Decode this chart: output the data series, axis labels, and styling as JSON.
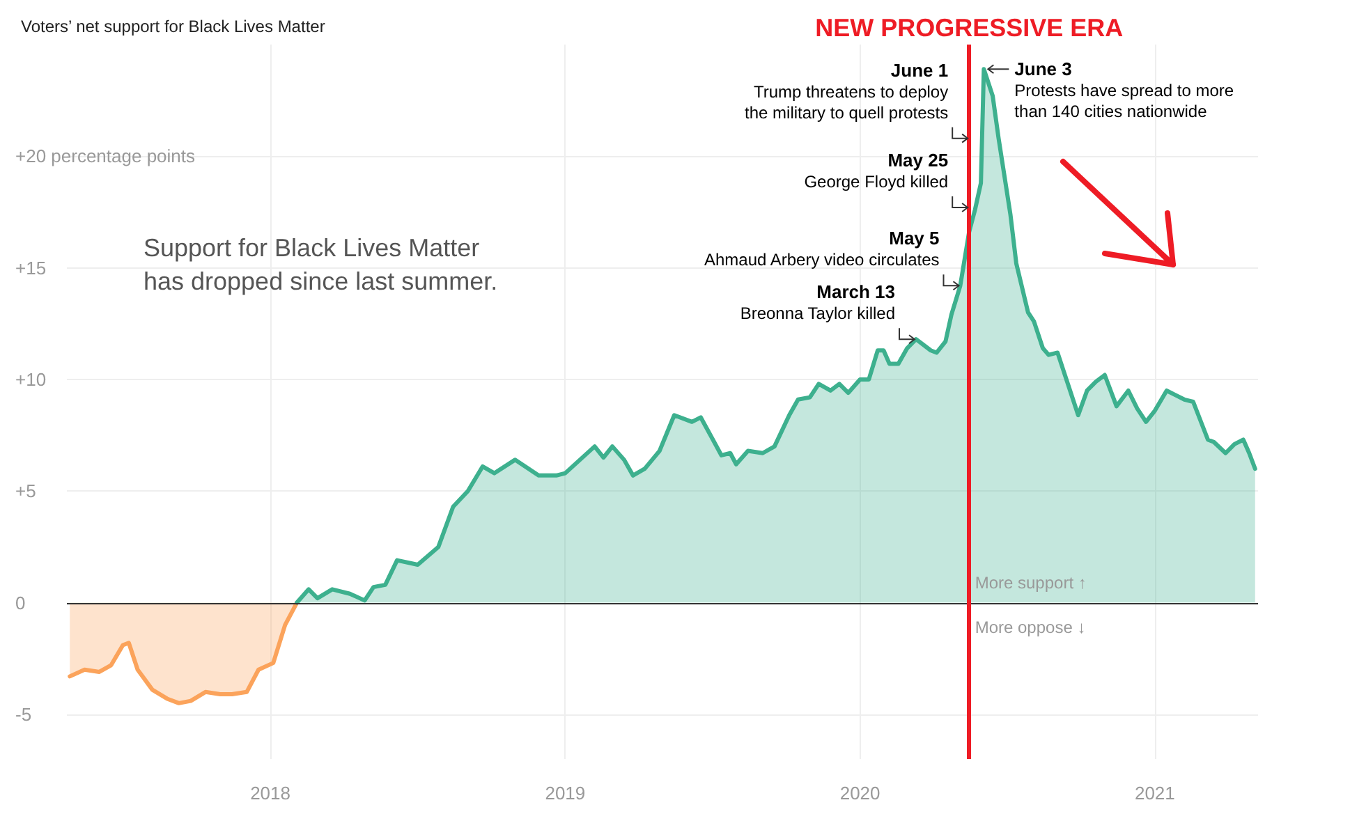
{
  "chart_data": {
    "type": "area",
    "title": "Voters’ net support for Black Lives Matter",
    "series": [
      {
        "color": "#fba35b",
        "x": [
          2017.32,
          2017.37,
          2017.42,
          2017.46,
          2017.5,
          2017.52,
          2017.55,
          2017.6,
          2017.65,
          2017.69,
          2017.73,
          2017.78,
          2017.83,
          2017.87,
          2017.92,
          2017.96,
          2018.01,
          2018.05,
          2018.09
        ],
        "values": [
          -3.3,
          -3.0,
          -3.1,
          -2.8,
          -1.9,
          -1.8,
          -3.0,
          -3.9,
          -4.3,
          -4.5,
          -4.4,
          -4.0,
          -4.1,
          -4.1,
          -4.0,
          -3.0,
          -2.7,
          -1.0,
          0
        ]
      },
      {
        "color": "#3db08e",
        "x": [
          2018.09,
          2018.13,
          2018.16,
          2018.21,
          2018.27,
          2018.32,
          2018.35,
          2018.39,
          2018.43,
          2018.5,
          2018.57,
          2018.62,
          2018.67,
          2018.72,
          2018.76,
          2018.83,
          2018.91,
          2018.97,
          2019.0,
          2019.1,
          2019.13,
          2019.16,
          2019.2,
          2019.23,
          2019.27,
          2019.32,
          2019.37,
          2019.43,
          2019.46,
          2019.53,
          2019.56,
          2019.58,
          2019.62,
          2019.67,
          2019.71,
          2019.76,
          2019.79,
          2019.83,
          2019.86,
          2019.9,
          2019.93,
          2019.96,
          2020,
          2020.03,
          2020.06,
          2020.08,
          2020.1,
          2020.13,
          2020.16,
          2020.19,
          2020.24,
          2020.26,
          2020.29,
          2020.31,
          2020.34,
          2020.37,
          2020.39,
          2020.41,
          2020.42,
          2020.45,
          2020.47,
          2020.51,
          2020.53,
          2020.57,
          2020.59,
          2020.62,
          2020.64,
          2020.67,
          2020.69,
          2020.71,
          2020.74,
          2020.77,
          2020.8,
          2020.83,
          2020.87,
          2020.91,
          2020.94,
          2020.97,
          2021,
          2021.04,
          2021.07,
          2021.1,
          2021.13,
          2021.18,
          2021.2,
          2021.24,
          2021.27,
          2021.3,
          2021.32,
          2021.34
        ],
        "values": [
          0,
          0.6,
          0.2,
          0.6,
          0.4,
          0.1,
          0.7,
          0.8,
          1.9,
          1.7,
          2.5,
          4.3,
          5.0,
          6.1,
          5.8,
          6.4,
          5.7,
          5.7,
          5.8,
          7.0,
          6.5,
          7.0,
          6.4,
          5.7,
          6.0,
          6.8,
          8.4,
          8.1,
          8.3,
          6.6,
          6.7,
          6.2,
          6.8,
          6.7,
          7.0,
          8.4,
          9.1,
          9.2,
          9.8,
          9.5,
          9.8,
          9.4,
          10.0,
          10.0,
          11.3,
          11.3,
          10.7,
          10.7,
          11.4,
          11.8,
          11.3,
          11.2,
          11.7,
          12.9,
          14.2,
          16.6,
          17.6,
          18.8,
          23.9,
          22.7,
          20.8,
          17.4,
          15.2,
          13.0,
          12.6,
          11.4,
          11.1,
          11.2,
          10.4,
          9.6,
          8.4,
          9.5,
          9.9,
          10.2,
          8.8,
          9.5,
          8.7,
          8.1,
          8.6,
          9.5,
          9.3,
          9.1,
          9.0,
          7.3,
          7.2,
          6.7,
          7.1,
          7.3,
          6.7,
          6.0
        ]
      }
    ],
    "xlim": [
      2017.31,
      2021.35
    ],
    "xticks": [
      2018,
      2019,
      2020,
      2021
    ],
    "ylim": [
      -7,
      25
    ],
    "yticks": [
      -5,
      0,
      {
        "value": 5,
        "label": "+5"
      },
      {
        "value": 10,
        "label": "+10"
      },
      {
        "value": 15,
        "label": "+15"
      },
      {
        "value": 20,
        "label": "+20 percentage points"
      }
    ],
    "grid": true,
    "marker": "none",
    "ref_lines": [
      {
        "axis": "y",
        "value": 0,
        "color": "#333333"
      },
      {
        "axis": "x",
        "value": 2020.37,
        "label": "NEW PROGRESSIVE ERA",
        "color": "#ee1c25"
      }
    ],
    "annotations": [
      "Support for Black Lives Matter\nhas dropped since last summer.",
      {
        "text": "March 13\nBreonna Taylor killed",
        "x": 2020.19,
        "y": 11.8
      },
      {
        "text": "May 5\nAhmaud Arbery video circulates",
        "x": 2020.34,
        "y": 14.2
      },
      {
        "text": "May 25\nGeorge Floyd killed",
        "x": 2020.37,
        "y": 17.7
      },
      {
        "text": "June 1\nTrump threatens to deploy\nthe military to quell protests",
        "x": 2020.37,
        "y": 20.8
      },
      {
        "text": "June 3\nProtests have spread to more\nthan 140 cities nationwide",
        "x": 2020.42,
        "y": 23.9
      },
      {
        "text": "More support ↑",
        "x": 2020.39,
        "y": 0.9
      },
      {
        "text": "More oppose ↓",
        "x": 2020.39,
        "y": -1.1
      }
    ]
  }
}
